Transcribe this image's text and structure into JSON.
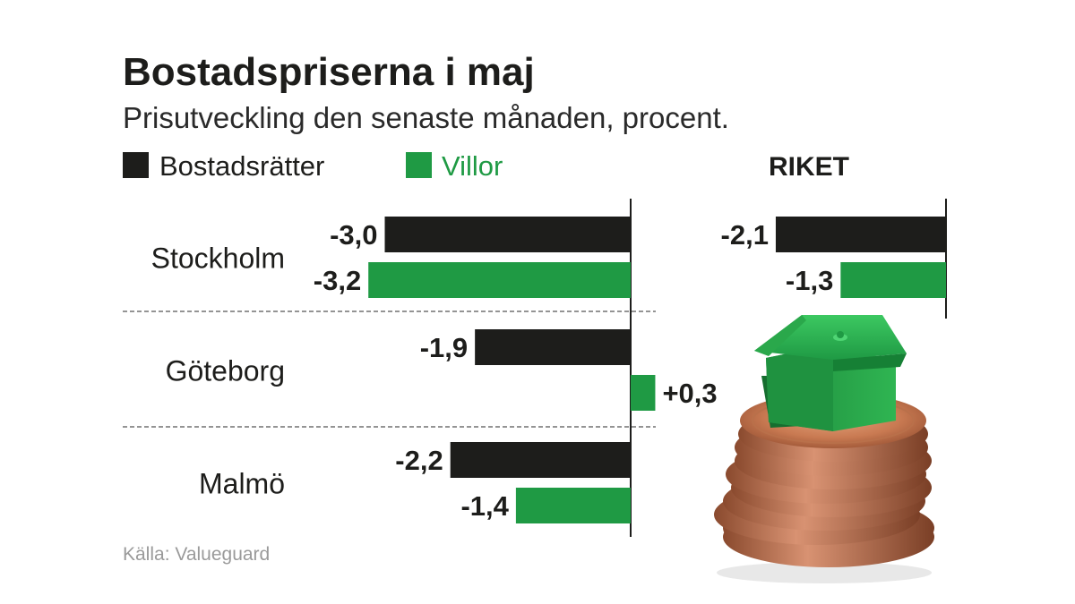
{
  "colors": {
    "bostadsratter": "#1d1d1b",
    "villor": "#1f9a44",
    "text": "#1d1d1b",
    "source": "#9a9a9a"
  },
  "chart_data": [
    {
      "type": "bar",
      "orientation": "horizontal",
      "title": "Bostadspriserna i maj",
      "subtitle": "Prisutveckling den senaste månaden, procent.",
      "categories": [
        "Stockholm",
        "Göteborg",
        "Malmö"
      ],
      "series": [
        {
          "name": "Bostadsrätter",
          "color": "#1d1d1b",
          "values": [
            -3.0,
            -1.9,
            -2.2
          ],
          "labels": [
            "-3,0",
            "-1,9",
            "-2,2"
          ]
        },
        {
          "name": "Villor",
          "color": "#1f9a44",
          "values": [
            -3.2,
            0.3,
            -1.4
          ],
          "labels": [
            "-3,2",
            "+0,3",
            "-1,4"
          ]
        }
      ],
      "legend": "top-left",
      "grid": false
    },
    {
      "type": "bar",
      "orientation": "horizontal",
      "title": "RIKET",
      "categories": [
        "Riket"
      ],
      "series": [
        {
          "name": "Bostadsrätter",
          "color": "#1d1d1b",
          "values": [
            -2.1
          ],
          "labels": [
            "-2,1"
          ]
        },
        {
          "name": "Villor",
          "color": "#1f9a44",
          "values": [
            -1.3
          ],
          "labels": [
            "-1,3"
          ]
        }
      ]
    }
  ],
  "source": "Källa: Valueguard"
}
